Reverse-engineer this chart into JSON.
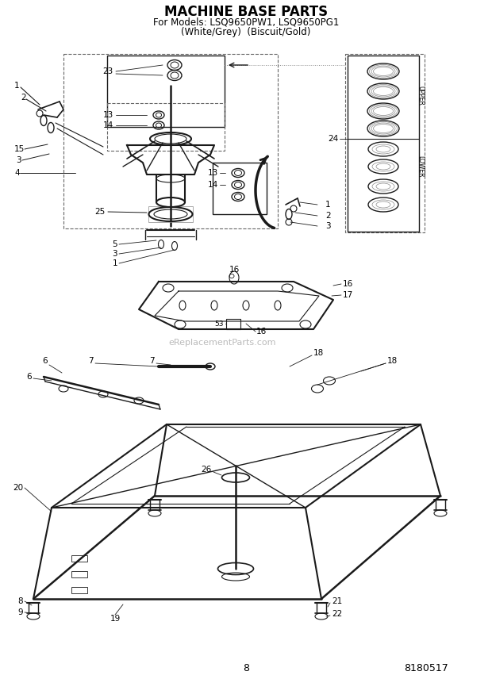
{
  "title_line1": "MACHINE BASE PARTS",
  "title_line2": "For Models: LSQ9650PW1, LSQ9650PG1",
  "title_line3": "(White/Grey)  (Biscuit/Gold)",
  "page_number": "8",
  "part_number": "8180517",
  "background_color": "#ffffff",
  "watermark_text": "eReplacementParts.com",
  "watermark_color": "#bbbbbb",
  "lc": "#1a1a1a",
  "title_fontsize": 12,
  "subtitle_fontsize": 8.5,
  "label_fs": 7.5
}
